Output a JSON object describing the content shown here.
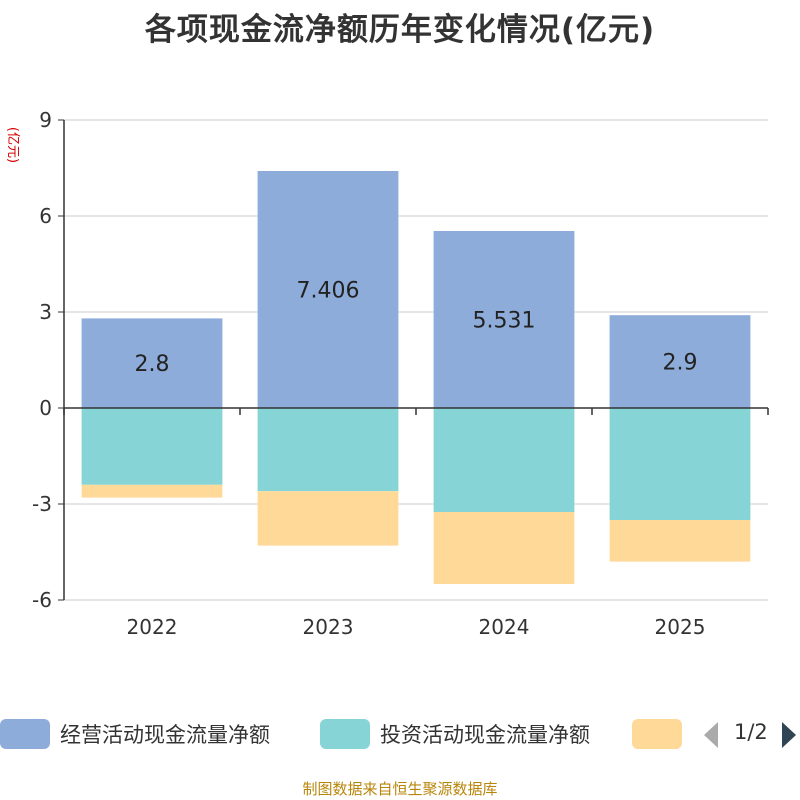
{
  "chart_data": {
    "type": "bar",
    "stacked": true,
    "title": "各项现金流净额历年变化情况(亿元)",
    "ylabel": "(亿元)",
    "xlabel": "",
    "categories": [
      "2022",
      "2023",
      "2024",
      "2025"
    ],
    "ylim": [
      -6,
      9
    ],
    "yticks": [
      9,
      6,
      3,
      0,
      -3,
      -6
    ],
    "grid": true,
    "series": [
      {
        "name": "经营活动现金流量净额",
        "color": "#8eacd9",
        "values": [
          2.8,
          7.406,
          5.531,
          2.9
        ],
        "labels": [
          "2.8",
          "7.406",
          "5.531",
          "2.9"
        ]
      },
      {
        "name": "投资活动现金流量净额",
        "color": "#86d4d6",
        "values": [
          -2.4,
          -2.6,
          -3.25,
          -3.5
        ]
      },
      {
        "name": "",
        "color": "#ffd998",
        "values": [
          -0.4,
          -1.7,
          -2.25,
          -1.3
        ]
      }
    ]
  },
  "legend": {
    "items": [
      {
        "label": "经营活动现金流量净额",
        "color": "#8eacd9"
      },
      {
        "label": "投资活动现金流量净额",
        "color": "#86d4d6"
      },
      {
        "label": "",
        "color": "#ffd998"
      }
    ],
    "page": "1/2"
  },
  "footer": {
    "source": "制图数据来自恒生聚源数据库"
  }
}
